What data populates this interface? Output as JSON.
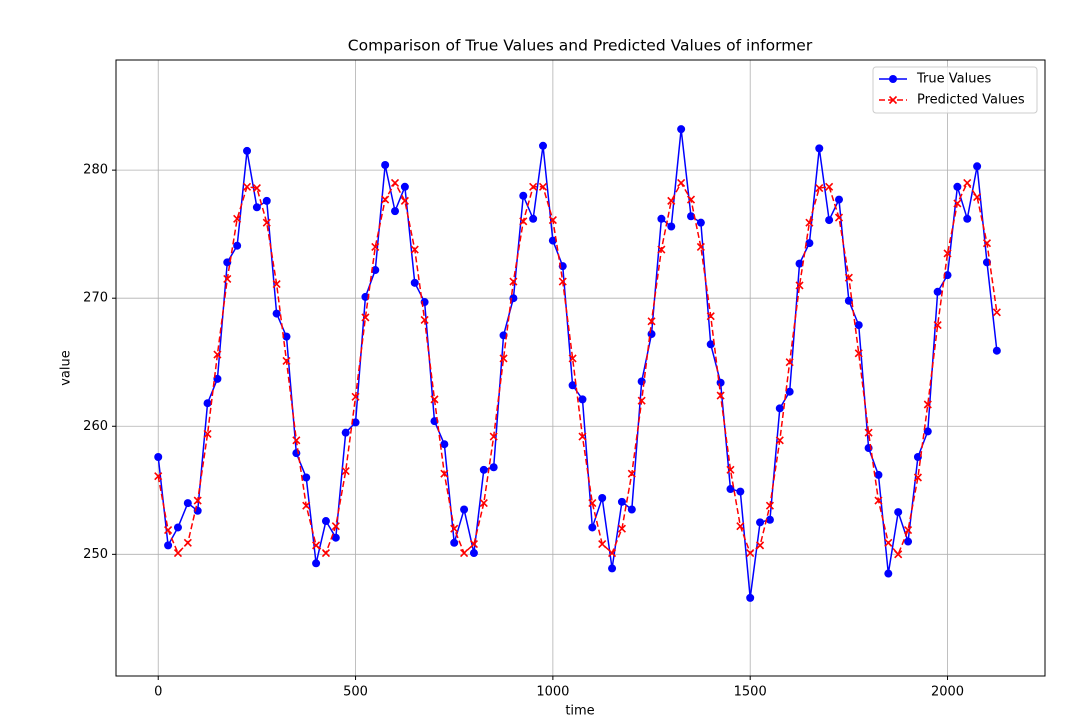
{
  "chart_data": {
    "type": "line",
    "title": "Comparison of True Values and Predicted Values of informer",
    "xlabel": "time",
    "ylabel": "value",
    "x": [
      0,
      25,
      50,
      75,
      100,
      125,
      150,
      175,
      200,
      225,
      250,
      275,
      300,
      325,
      350,
      375,
      400,
      425,
      450,
      475,
      500,
      525,
      550,
      575,
      600,
      625,
      650,
      675,
      700,
      725,
      750,
      775,
      800,
      825,
      850,
      875,
      900,
      925,
      950,
      975,
      1000,
      1025,
      1050,
      1075,
      1100,
      1125,
      1150,
      1175,
      1200,
      1225,
      1250,
      1275,
      1300,
      1325,
      1350,
      1375,
      1400,
      1425,
      1450,
      1475,
      1500,
      1525,
      1550,
      1575,
      1600,
      1625,
      1650,
      1675,
      1700,
      1725,
      1750,
      1775,
      1800,
      1825,
      1850,
      1875,
      1900,
      1925,
      1950,
      1975,
      2000,
      2025,
      2050,
      2075,
      2100,
      2125
    ],
    "series": [
      {
        "name": "True Values",
        "color": "#0000ff",
        "marker": "o",
        "dash": false,
        "values": [
          257.6,
          250.7,
          252.1,
          254.0,
          253.4,
          261.8,
          263.7,
          272.8,
          274.1,
          281.5,
          277.1,
          277.6,
          268.8,
          267.0,
          257.9,
          256.0,
          249.3,
          252.6,
          251.3,
          259.5,
          260.3,
          270.1,
          272.2,
          280.4,
          276.8,
          278.7,
          271.2,
          269.7,
          260.4,
          258.6,
          250.9,
          253.5,
          250.1,
          256.6,
          256.8,
          267.1,
          270.0,
          278.0,
          276.2,
          281.9,
          274.5,
          272.5,
          263.2,
          262.1,
          252.1,
          254.4,
          248.9,
          254.1,
          253.5,
          263.5,
          267.2,
          276.2,
          275.6,
          283.2,
          276.4,
          275.9,
          266.4,
          263.4,
          255.1,
          254.9,
          246.6,
          252.5,
          252.7,
          261.4,
          262.7,
          272.7,
          274.3,
          281.7,
          276.1,
          277.7,
          269.8,
          267.9,
          258.3,
          256.2,
          248.5,
          253.3,
          251.0,
          257.6,
          259.6,
          270.5,
          271.8,
          278.7,
          276.2,
          280.3,
          272.8,
          265.9
        ]
      },
      {
        "name": "Predicted Values",
        "color": "#ff0000",
        "marker": "x",
        "dash": true,
        "values": [
          256.1,
          251.9,
          250.1,
          250.9,
          254.2,
          259.4,
          265.6,
          271.5,
          276.2,
          278.7,
          278.6,
          275.9,
          271.1,
          265.1,
          258.9,
          253.8,
          250.7,
          250.1,
          252.2,
          256.5,
          262.3,
          268.5,
          274.0,
          277.7,
          279.0,
          277.6,
          273.8,
          268.3,
          262.1,
          256.3,
          252.0,
          250.1,
          250.8,
          254.0,
          259.2,
          265.3,
          271.3,
          276.0,
          278.7,
          278.7,
          276.1,
          271.3,
          265.3,
          259.2,
          254.0,
          250.8,
          250.1,
          252.0,
          256.3,
          262.0,
          268.2,
          273.8,
          277.6,
          279.0,
          277.7,
          274.0,
          268.6,
          262.4,
          256.6,
          252.2,
          250.1,
          250.7,
          253.8,
          258.9,
          265.0,
          271.0,
          275.9,
          278.6,
          278.7,
          276.3,
          271.6,
          265.7,
          259.5,
          254.2,
          250.9,
          250.0,
          251.9,
          256.0,
          261.7,
          267.9,
          273.5,
          277.4,
          279.0,
          277.9,
          274.3,
          268.9
        ]
      }
    ],
    "xlim": [
      -107,
      2247
    ],
    "xticks": [
      0,
      500,
      1000,
      1500,
      2000
    ],
    "ylim": [
      240.5,
      288.6
    ],
    "yticks": [
      250,
      260,
      270,
      280
    ],
    "grid": true,
    "legend": "upper right"
  }
}
